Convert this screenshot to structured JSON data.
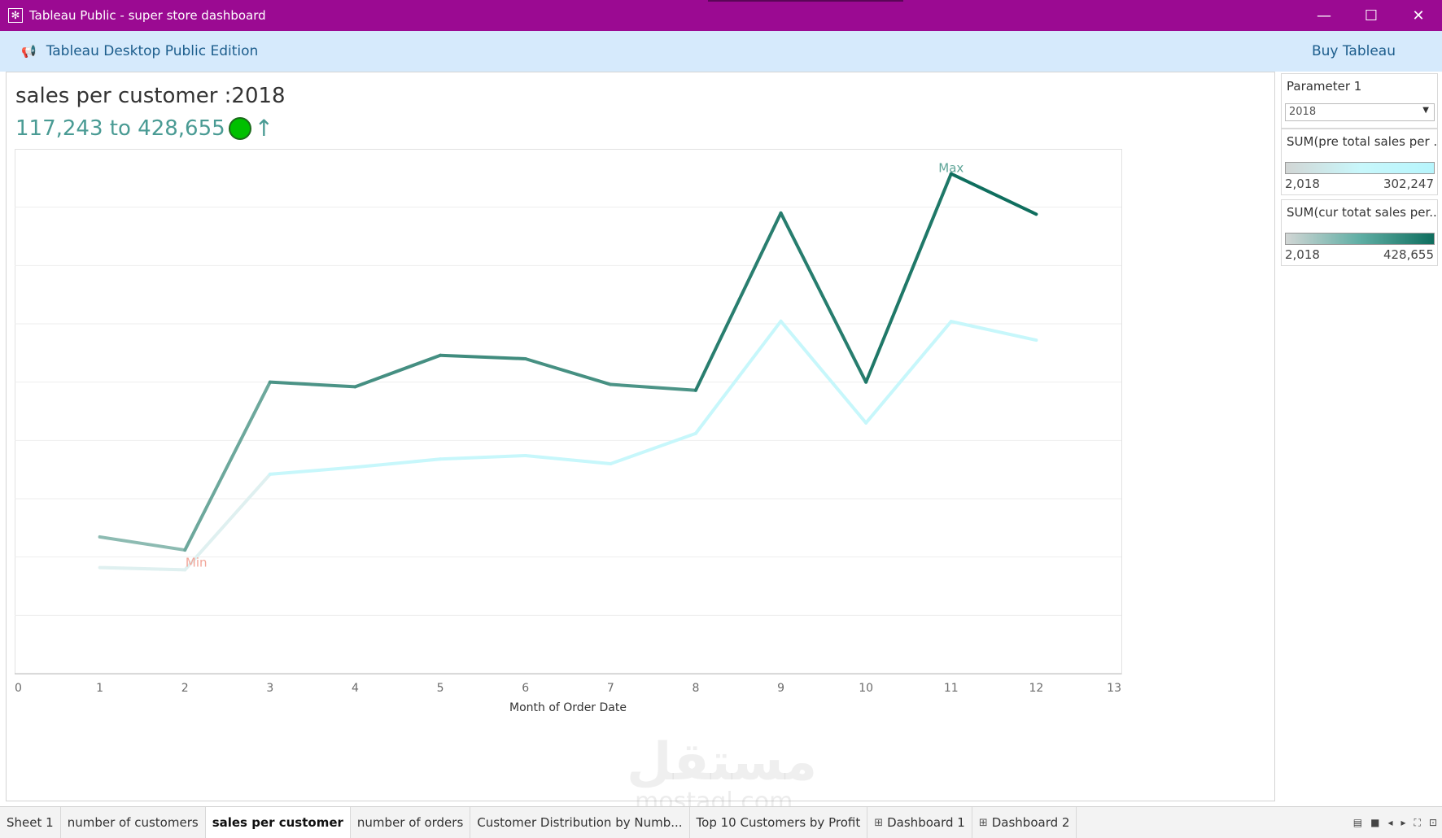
{
  "window": {
    "title": "Tableau Public - super store dashboard",
    "app_icon": "tableau-icon",
    "controls": {
      "minimize": "—",
      "maximize": "☐",
      "close": "✕"
    }
  },
  "banner": {
    "edition": "Tableau Desktop Public Edition",
    "buy_label": "Buy Tableau",
    "icon": "megaphone-icon"
  },
  "worksheet": {
    "title": "sales per customer :2018",
    "subtitle": "117,243 to 428,655",
    "indicator_color": "#00c000",
    "indicator_arrow": "↑"
  },
  "legends": {
    "parameter": {
      "title": "Parameter 1",
      "value": "2018"
    },
    "pre_total": {
      "title": "SUM(pre total sales per ...",
      "min": "2,018",
      "max": "302,247"
    },
    "cur_total": {
      "title": "SUM(cur totat sales per...",
      "min": "2,018",
      "max": "428,655"
    }
  },
  "chart_data": {
    "type": "line",
    "xlabel": "Month of Order Date",
    "ylabel": "",
    "x_ticks": [
      0,
      1,
      2,
      3,
      4,
      5,
      6,
      7,
      8,
      9,
      10,
      11,
      12,
      13
    ],
    "xlim": [
      0,
      13
    ],
    "ylim": [
      0,
      450000
    ],
    "grid": true,
    "annotations": [
      {
        "text": "Min",
        "x": 2,
        "series": "cur"
      },
      {
        "text": "Max",
        "x": 11,
        "series": "cur"
      }
    ],
    "series": [
      {
        "key": "pre",
        "color": "#c7f7fb",
        "x": [
          1,
          2,
          3,
          4,
          5,
          6,
          7,
          8,
          9,
          10,
          11,
          12
        ],
        "values": [
          91000,
          89000,
          171000,
          177000,
          184000,
          187000,
          180000,
          206000,
          302247,
          215000,
          302000,
          286000
        ]
      },
      {
        "key": "cur",
        "color_low": "#c7dfd8",
        "color_high": "#0f6e5e",
        "x": [
          1,
          2,
          3,
          4,
          5,
          6,
          7,
          8,
          9,
          10,
          11,
          12
        ],
        "values": [
          117243,
          106000,
          250000,
          246000,
          273000,
          270000,
          248000,
          243000,
          395000,
          250000,
          428655,
          394000
        ]
      }
    ]
  },
  "tabs": [
    {
      "label": "Sheet 1",
      "icon": ""
    },
    {
      "label": "number of customers",
      "icon": ""
    },
    {
      "label": "sales per customer",
      "icon": "",
      "active": true
    },
    {
      "label": "number of orders",
      "icon": ""
    },
    {
      "label": "Customer Distribution by Numb...",
      "icon": ""
    },
    {
      "label": "Top 10 Customers by Profit",
      "icon": ""
    },
    {
      "label": "Dashboard 1",
      "icon": "dashboard-icon"
    },
    {
      "label": "Dashboard 2",
      "icon": "dashboard-icon"
    }
  ],
  "watermark": {
    "text": "مستقل",
    "site": "mostaql.com"
  }
}
